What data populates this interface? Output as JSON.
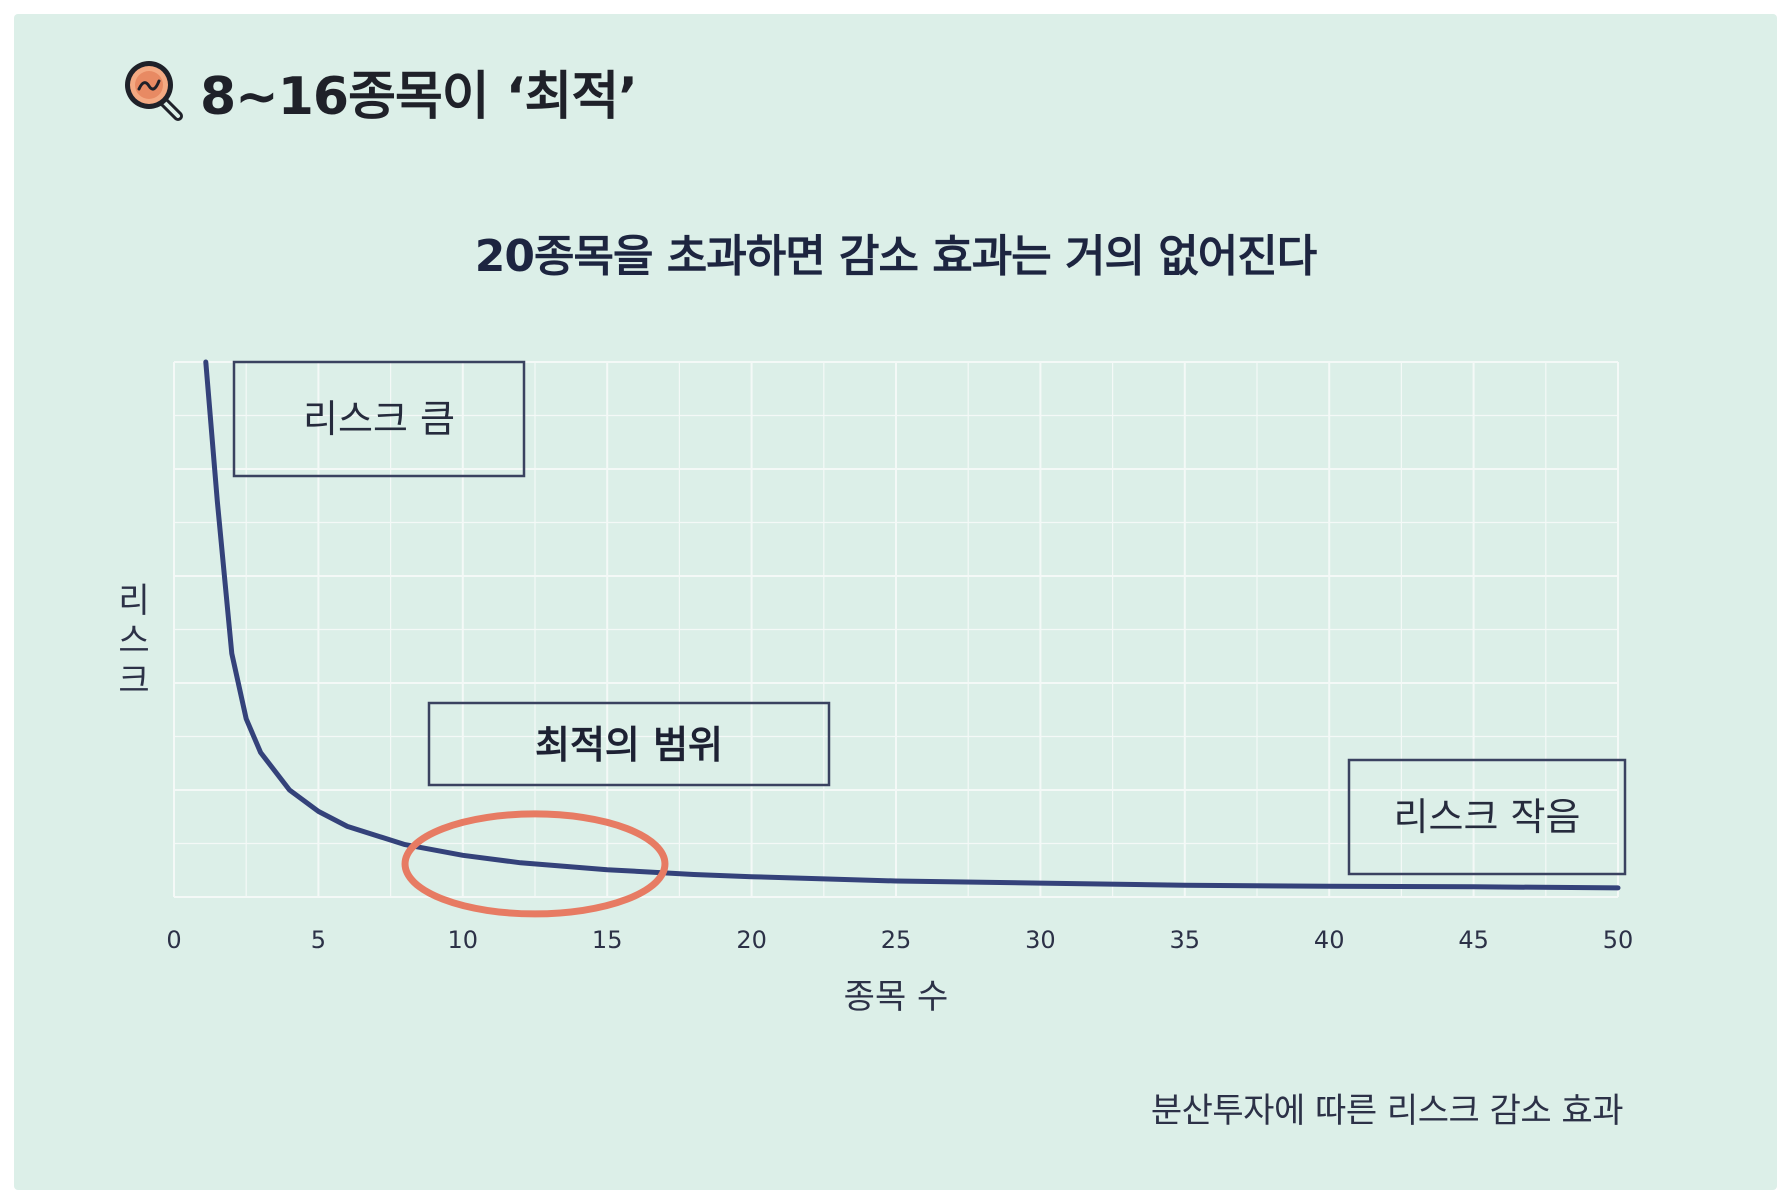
{
  "header": {
    "title": "8~16종목이 ‘최적’",
    "icon": "magnifier-chart-icon"
  },
  "subtitle": "20종목을 초과하면 감소 효과는 거의 없어진다",
  "caption": "분산투자에 따른 리스크 감소 효과",
  "colors": {
    "background": "#dcefe8",
    "curve": "#34427a",
    "highlight": "#e77b63",
    "grid": "#f4f9f7",
    "box_border": "#3a4260"
  },
  "annotations": {
    "high_risk": "리스크 큼",
    "optimal_range": "최적의 범위",
    "low_risk": "리스크 작음"
  },
  "chart_data": {
    "type": "line",
    "xlabel": "종목 수",
    "ylabel": "리스크",
    "xlim": [
      0,
      50
    ],
    "ylim": [
      0,
      10
    ],
    "x_ticks": [
      "0",
      "5",
      "10",
      "15",
      "20",
      "25",
      "30",
      "35",
      "40",
      "45",
      "50"
    ],
    "grid": true,
    "series": [
      {
        "x": [
          1.1,
          1.5,
          2,
          2.5,
          3,
          4,
          5,
          6,
          8,
          10,
          12,
          15,
          18,
          20,
          25,
          30,
          35,
          40,
          45,
          50
        ],
        "values": [
          10,
          7.4,
          4.55,
          3.33,
          2.7,
          2.0,
          1.6,
          1.32,
          0.98,
          0.78,
          0.64,
          0.51,
          0.42,
          0.38,
          0.3,
          0.26,
          0.22,
          0.2,
          0.19,
          0.17
        ]
      }
    ],
    "highlight_range": [
      8,
      17
    ]
  }
}
